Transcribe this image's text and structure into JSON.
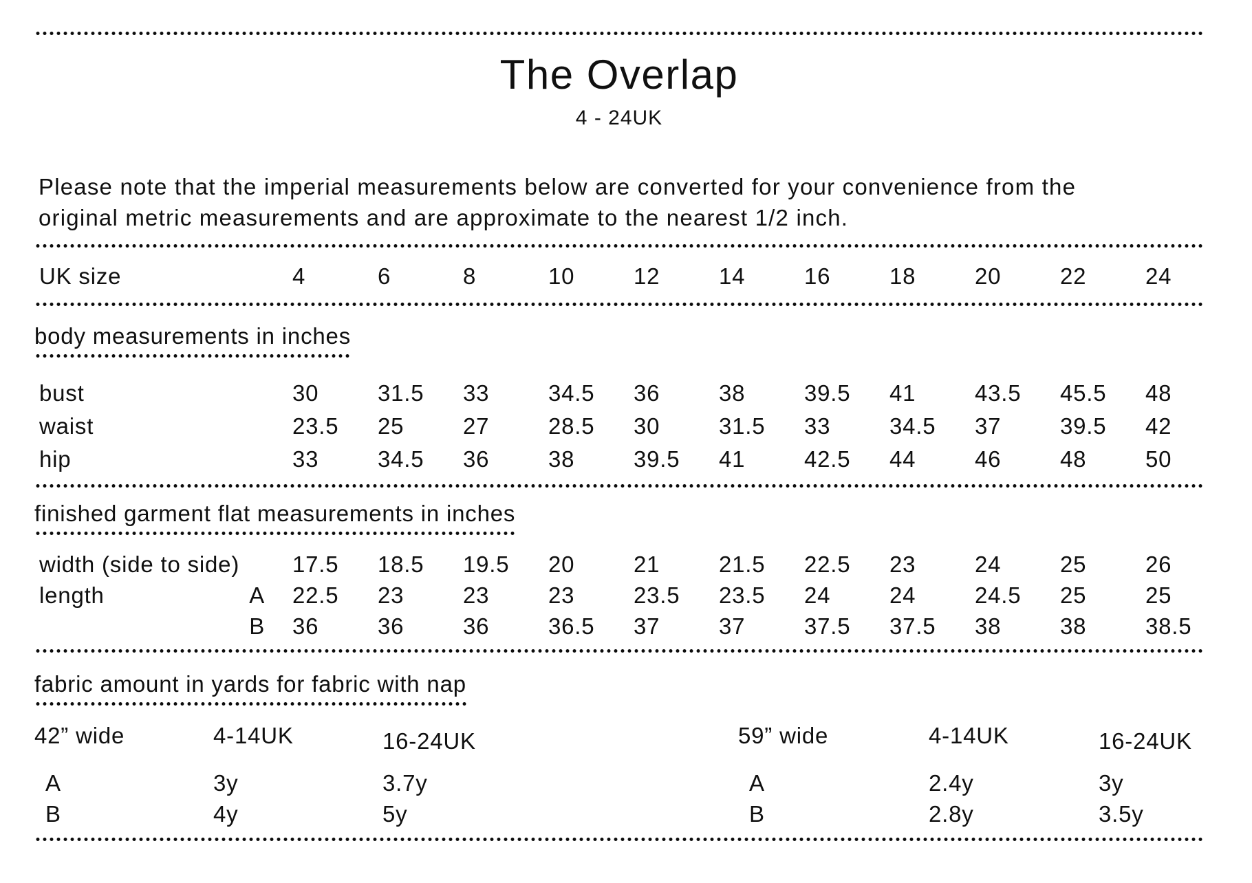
{
  "page": {
    "title": "The Overlap",
    "subtitle": "4 - 24UK",
    "note_lines": [
      "Please note that the imperial measurements below are converted for your convenience from the",
      "original metric measurements and are approximate to the nearest 1/2 inch."
    ]
  },
  "size_table": {
    "size_row_label": "UK size",
    "sizes": [
      "4",
      "6",
      "8",
      "10",
      "12",
      "14",
      "16",
      "18",
      "20",
      "22",
      "24"
    ],
    "body_section": {
      "heading": "body measurements in inches",
      "rows": [
        {
          "label": "bust",
          "sub": "",
          "values": [
            "30",
            "31.5",
            "33",
            "34.5",
            "36",
            "38",
            "39.5",
            "41",
            "43.5",
            "45.5",
            "48"
          ]
        },
        {
          "label": "waist",
          "sub": "",
          "values": [
            "23.5",
            "25",
            "27",
            "28.5",
            "30",
            "31.5",
            "33",
            "34.5",
            "37",
            "39.5",
            "42"
          ]
        },
        {
          "label": "hip",
          "sub": "",
          "values": [
            "33",
            "34.5",
            "36",
            "38",
            "39.5",
            "41",
            "42.5",
            "44",
            "46",
            "48",
            "50"
          ]
        }
      ]
    },
    "garment_section": {
      "heading": "finished garment flat measurements in inches",
      "rows": [
        {
          "label": "width (side to side)",
          "sub": "",
          "values": [
            "17.5",
            "18.5",
            "19.5",
            "20",
            "21",
            "21.5",
            "22.5",
            "23",
            "24",
            "25",
            "26"
          ]
        },
        {
          "label": "length",
          "sub": "A",
          "values": [
            "22.5",
            "23",
            "23",
            "23",
            "23.5",
            "23.5",
            "24",
            "24",
            "24.5",
            "25",
            "25"
          ]
        },
        {
          "label": "",
          "sub": "B",
          "values": [
            "36",
            "36",
            "36",
            "36.5",
            "37",
            "37",
            "37.5",
            "37.5",
            "38",
            "38",
            "38.5"
          ]
        }
      ]
    }
  },
  "fabric_section": {
    "heading": "fabric amount in yards for fabric with nap",
    "blocks": [
      {
        "width_label": "42” wide",
        "range1": "4-14UK",
        "range2": "16-24UK",
        "rows": [
          {
            "view": "A",
            "v1": "3y",
            "v2": "3.7y"
          },
          {
            "view": "B",
            "v1": "4y",
            "v2": "5y"
          }
        ]
      },
      {
        "width_label": "59” wide",
        "range1": "4-14UK",
        "range2": "16-24UK",
        "rows": [
          {
            "view": "A",
            "v1": "2.4y",
            "v2": "3y"
          },
          {
            "view": "B",
            "v1": "2.8y",
            "v2": "3.5y"
          }
        ]
      }
    ]
  }
}
